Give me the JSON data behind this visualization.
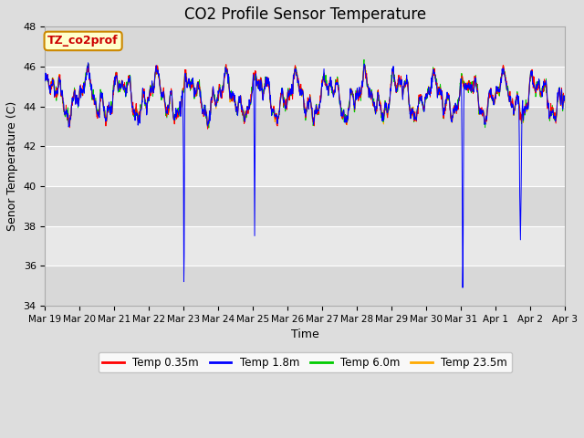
{
  "title": "CO2 Profile Sensor Temperature",
  "ylabel": "Senor Temperature (C)",
  "xlabel": "Time",
  "ylim": [
    34,
    48
  ],
  "yticks": [
    34,
    36,
    38,
    40,
    42,
    44,
    46,
    48
  ],
  "xtick_labels": [
    "Mar 19",
    "Mar 20",
    "Mar 21",
    "Mar 22",
    "Mar 23",
    "Mar 24",
    "Mar 25",
    "Mar 26",
    "Mar 27",
    "Mar 28",
    "Mar 29",
    "Mar 30",
    "Mar 31",
    "Apr 1",
    "Apr 2",
    "Apr 3"
  ],
  "annotation_text": "TZ_co2prof",
  "annotation_fc": "#ffffcc",
  "annotation_ec": "#cc8800",
  "annotation_tc": "#cc0000",
  "legend_entries": [
    "Temp 0.35m",
    "Temp 1.8m",
    "Temp 6.0m",
    "Temp 23.5m"
  ],
  "legend_colors": [
    "#ff0000",
    "#0000ff",
    "#00cc00",
    "#ffaa00"
  ],
  "line_colors": [
    "#ff0000",
    "#0000ff",
    "#00cc00",
    "#ffaa00"
  ],
  "bg_color": "#dddddd",
  "plot_bg_color": "#e8e8e8",
  "grid_color": "#ffffff",
  "title_fontsize": 12,
  "axis_label_fontsize": 9,
  "tick_fontsize": 8
}
